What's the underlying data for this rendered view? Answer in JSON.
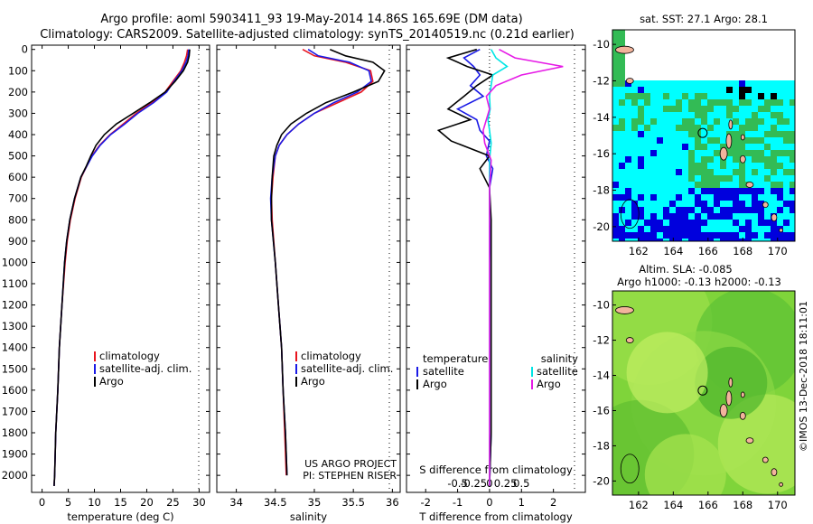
{
  "titles": {
    "line1": "Argo profile: aoml 5903411_93 19-May-2014 14.86S 165.69E (DM data)",
    "line2": "Climatology: CARS2009. Satellite-adjusted climatology: synTS_20140519.nc (0.21d earlier)"
  },
  "colors": {
    "climatology": "#e8141e",
    "satellite": "#1a1ae6",
    "argo": "#000000",
    "sat_salinity": "#00e5e5",
    "argo_salinity": "#e61ae6"
  },
  "depth_ticks": [
    0,
    100,
    200,
    300,
    400,
    500,
    600,
    700,
    800,
    900,
    1000,
    1100,
    1200,
    1300,
    1400,
    1500,
    1600,
    1700,
    1800,
    1900,
    2000
  ],
  "chart_data": [
    {
      "type": "line",
      "name": "temperature",
      "xlabel": "temperature (deg C)",
      "xlim": [
        -2,
        32
      ],
      "xticks": [
        0,
        5,
        10,
        15,
        20,
        25,
        30
      ],
      "ylim": [
        2080,
        -20
      ],
      "legend": [
        "climatology",
        "satellite-adj. clim.",
        "Argo"
      ],
      "series": [
        {
          "name": "climatology",
          "x": [
            27.8,
            27.6,
            27.2,
            26.5,
            25.0,
            23.5,
            21.0,
            18.0,
            15.5,
            13.0,
            11.0,
            9.5,
            8.5,
            7.5,
            6.3,
            5.4,
            4.8,
            4.4,
            3.8,
            3.3,
            3.0,
            2.6,
            2.4,
            2.3
          ],
          "y": [
            0,
            30,
            60,
            100,
            150,
            200,
            250,
            300,
            350,
            400,
            450,
            500,
            550,
            600,
            700,
            800,
            900,
            1000,
            1200,
            1400,
            1600,
            1800,
            2000,
            2050
          ]
        },
        {
          "name": "satellite-adj. clim.",
          "x": [
            28.0,
            27.9,
            27.5,
            26.7,
            25.2,
            23.8,
            21.3,
            18.3,
            15.8,
            13.1,
            11.1,
            9.6,
            8.5,
            7.4,
            6.2,
            5.3,
            4.7,
            4.3,
            3.8,
            3.3,
            3.0,
            2.6,
            2.4,
            2.3
          ],
          "y": [
            0,
            30,
            60,
            100,
            150,
            200,
            250,
            300,
            350,
            400,
            450,
            500,
            550,
            600,
            700,
            800,
            900,
            1000,
            1200,
            1400,
            1600,
            1800,
            2000,
            2050
          ]
        },
        {
          "name": "Argo",
          "x": [
            28.2,
            28.1,
            27.8,
            27.0,
            25.4,
            23.5,
            20.6,
            17.4,
            14.2,
            11.9,
            10.3,
            9.3,
            8.4,
            7.4,
            6.2,
            5.3,
            4.7,
            4.3,
            3.8,
            3.3,
            3.0,
            2.6,
            2.4,
            2.3
          ],
          "y": [
            0,
            30,
            60,
            100,
            150,
            200,
            250,
            300,
            350,
            400,
            450,
            500,
            550,
            600,
            700,
            800,
            900,
            1000,
            1200,
            1400,
            1600,
            1800,
            2000,
            2050
          ]
        }
      ]
    },
    {
      "type": "line",
      "name": "salinity",
      "xlabel": "salinity",
      "xlim": [
        33.75,
        36.1
      ],
      "xticks": [
        34,
        34.5,
        35,
        35.5,
        36
      ],
      "ylim": [
        2080,
        -20
      ],
      "legend": [
        "climatology",
        "satellite-adj. clim.",
        "Argo"
      ],
      "annotation": [
        "US ARGO PROJECT",
        "PI: STEPHEN RISER"
      ],
      "series": [
        {
          "name": "climatology",
          "x": [
            34.85,
            35.0,
            35.4,
            35.72,
            35.75,
            35.6,
            35.3,
            35.0,
            34.8,
            34.65,
            34.55,
            34.5,
            34.47,
            34.45,
            34.46,
            34.5,
            34.54,
            34.58,
            34.6,
            34.62,
            34.64
          ],
          "y": [
            0,
            30,
            60,
            100,
            150,
            200,
            250,
            300,
            350,
            400,
            450,
            500,
            600,
            700,
            800,
            1000,
            1200,
            1400,
            1600,
            1800,
            2000
          ]
        },
        {
          "name": "satellite-adj. clim.",
          "x": [
            34.92,
            35.05,
            35.45,
            35.7,
            35.73,
            35.55,
            35.25,
            35.0,
            34.8,
            34.65,
            34.55,
            34.5,
            34.46,
            34.44,
            34.45,
            34.5,
            34.54,
            34.58,
            34.6,
            34.63,
            34.65
          ],
          "y": [
            0,
            30,
            60,
            100,
            150,
            200,
            250,
            300,
            350,
            400,
            450,
            500,
            600,
            700,
            800,
            1000,
            1200,
            1400,
            1600,
            1800,
            2000
          ]
        },
        {
          "name": "Argo",
          "x": [
            35.2,
            35.4,
            35.75,
            35.9,
            35.82,
            35.5,
            35.15,
            34.9,
            34.7,
            34.58,
            34.52,
            34.48,
            34.46,
            34.45,
            34.45,
            34.5,
            34.54,
            34.58,
            34.6,
            34.63,
            34.65
          ],
          "y": [
            0,
            30,
            60,
            100,
            150,
            200,
            250,
            300,
            350,
            400,
            450,
            500,
            600,
            700,
            800,
            1000,
            1200,
            1400,
            1600,
            1800,
            2000
          ]
        }
      ]
    },
    {
      "type": "line",
      "name": "difference",
      "xlabel": "T difference from climatology",
      "xlabel2": "S difference from climatology",
      "xlim": [
        -2.6,
        3.0
      ],
      "xticks": [
        "-2",
        "-1",
        "0",
        "1",
        "2"
      ],
      "xticks_s": [
        "-0.5",
        "-0.25",
        "0",
        "0.25",
        "0.5"
      ],
      "ylim": [
        2080,
        -20
      ],
      "legend_left_title": "temperature",
      "legend_right_title": "salinity",
      "legend_left": [
        "satellite",
        "Argo"
      ],
      "legend_right": [
        "satellite",
        "Argo"
      ],
      "series": [
        {
          "name": "T satellite",
          "x": [
            -0.3,
            -0.8,
            -0.5,
            -0.3,
            -0.6,
            -0.2,
            -1.0,
            -0.4,
            -0.3,
            0.0,
            -0.1,
            0.1,
            0.0,
            0.0,
            0.05,
            0.05,
            0.05,
            0.0
          ],
          "y": [
            0,
            40,
            80,
            120,
            170,
            220,
            280,
            330,
            380,
            430,
            500,
            560,
            650,
            800,
            1000,
            1400,
            1800,
            2050
          ]
        },
        {
          "name": "T Argo",
          "x": [
            -0.4,
            -1.3,
            -0.7,
            0.1,
            -0.4,
            -0.8,
            -1.3,
            -0.6,
            -1.6,
            -1.2,
            0.0,
            -0.3,
            0.0,
            0.05,
            0.05,
            0.05,
            0.05,
            0.0
          ],
          "y": [
            0,
            40,
            80,
            120,
            170,
            220,
            280,
            330,
            380,
            430,
            500,
            560,
            650,
            800,
            1000,
            1400,
            1800,
            2050
          ]
        },
        {
          "name": "S satellite",
          "x": [
            0.05,
            0.2,
            0.55,
            0.1,
            0.05,
            0.0,
            0.02,
            -0.05,
            0.0,
            0.05,
            0.0,
            0.0,
            0.0,
            0.0,
            0.0,
            0.0
          ],
          "y": [
            0,
            40,
            80,
            120,
            170,
            220,
            280,
            330,
            380,
            440,
            520,
            650,
            800,
            1000,
            1500,
            2050
          ]
        },
        {
          "name": "S Argo",
          "x": [
            0.3,
            0.8,
            2.3,
            1.0,
            0.2,
            -0.1,
            0.0,
            -0.1,
            -0.2,
            -0.15,
            0.05,
            0.0,
            0.0,
            0.0,
            0.0,
            0.0
          ],
          "y": [
            0,
            40,
            80,
            120,
            170,
            220,
            280,
            330,
            380,
            440,
            520,
            650,
            800,
            1000,
            1500,
            2050
          ]
        }
      ]
    },
    {
      "type": "heatmap",
      "name": "SST map",
      "title": "sat. SST: 27.1 Argo: 28.1",
      "xticks": [
        "162",
        "164",
        "166",
        "168",
        "170"
      ],
      "yticks": [
        "-10",
        "-12",
        "-14",
        "-16",
        "-18",
        "-20"
      ],
      "xlim": [
        160.5,
        171.0
      ],
      "ylim": [
        -20.8,
        -9.2
      ],
      "marker": {
        "lon": 165.69,
        "lat": -14.86
      }
    },
    {
      "type": "heatmap",
      "name": "SLA map",
      "title": "Altim. SLA: -0.085",
      "subtitle": "Argo h1000: -0.13 h2000: -0.13",
      "xticks": [
        "162",
        "164",
        "166",
        "168",
        "170"
      ],
      "yticks": [
        "-10",
        "-12",
        "-14",
        "-16",
        "-18",
        "-20"
      ],
      "xlim": [
        160.5,
        171.0
      ],
      "ylim": [
        -20.8,
        -9.2
      ],
      "marker": {
        "lon": 165.69,
        "lat": -14.86
      }
    }
  ],
  "credit": "©IMOS 13-Dec-2018 18:11:01"
}
